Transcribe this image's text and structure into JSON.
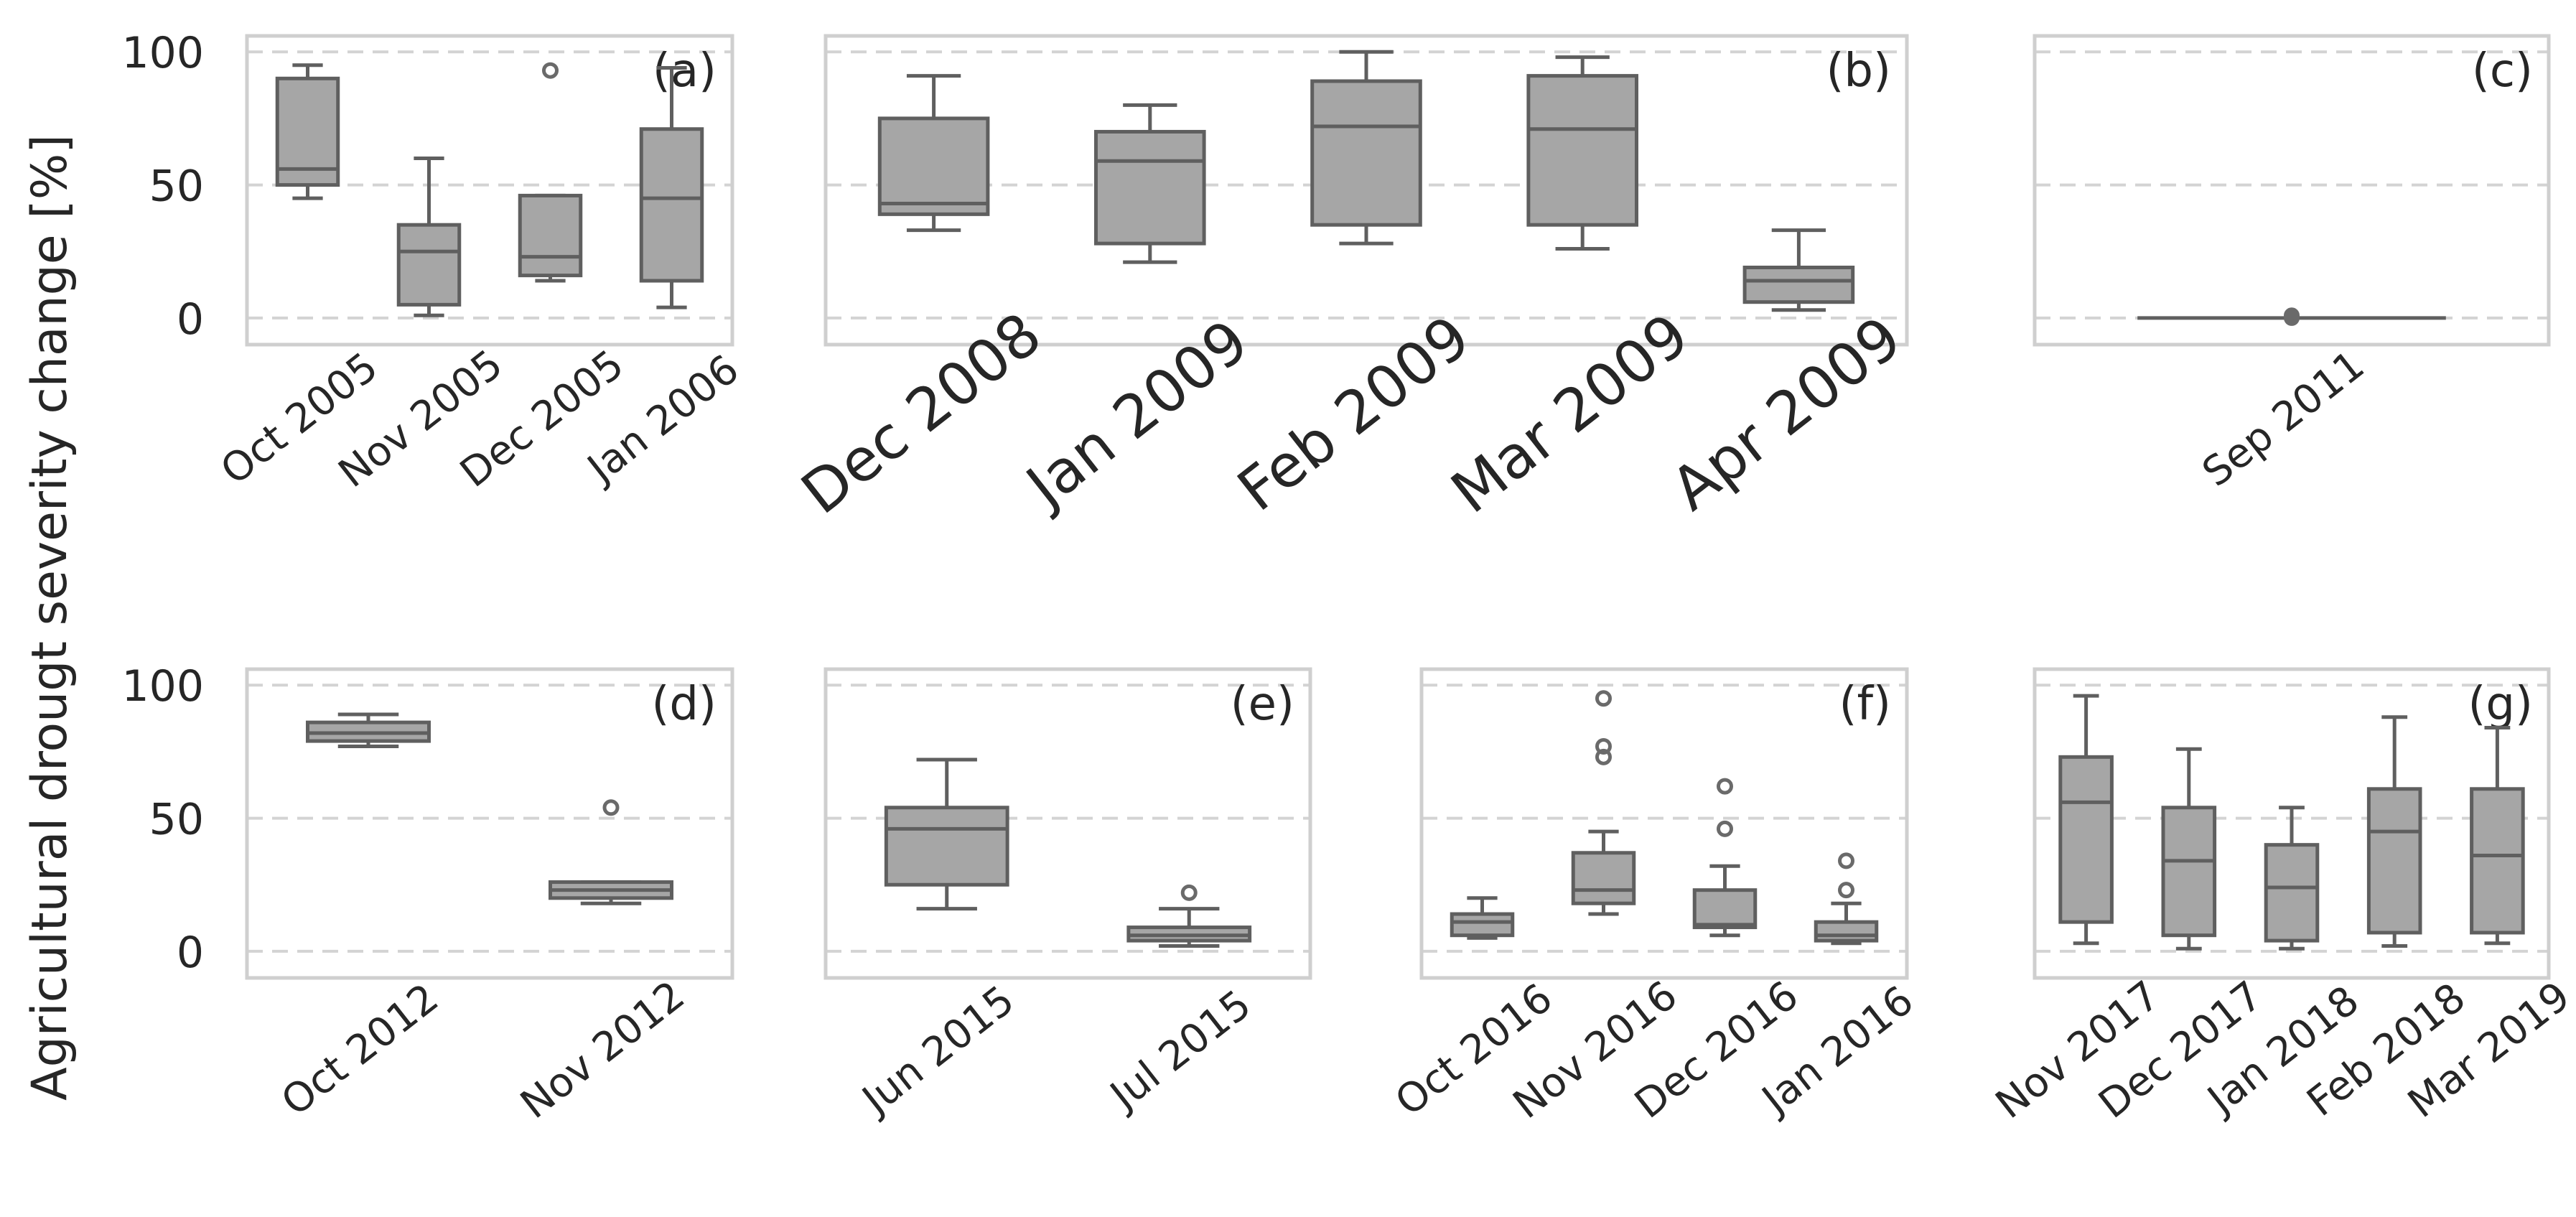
{
  "chart_data": {
    "type": "box",
    "ylabel": "Agricultural drougt severity change [%]",
    "yticks": [
      0,
      50,
      100
    ],
    "ylim": [
      -10,
      106
    ],
    "grid": "dashed horizontal at 0, 50, 100",
    "panels": [
      {
        "label": "(a)",
        "row": "top",
        "categories": [
          "Oct 2005",
          "Nov 2005",
          "Dec 2005",
          "Jan 2006"
        ],
        "boxes": [
          {
            "whislo": 45,
            "q1": 50,
            "med": 56,
            "q3": 90,
            "whishi": 95,
            "fliers": []
          },
          {
            "whislo": 1,
            "q1": 5,
            "med": 25,
            "q3": 35,
            "whishi": 60,
            "fliers": []
          },
          {
            "whislo": 14,
            "q1": 16,
            "med": 23,
            "q3": 46,
            "whishi": 46,
            "fliers": [
              93
            ]
          },
          {
            "whislo": 4,
            "q1": 14,
            "med": 45,
            "q3": 71,
            "whishi": 94,
            "fliers": []
          }
        ]
      },
      {
        "label": "(b)",
        "row": "top",
        "categories": [
          "Dec 2008",
          "Jan 2009",
          "Feb 2009",
          "Mar 2009",
          "Apr 2009"
        ],
        "boxes": [
          {
            "whislo": 33,
            "q1": 39,
            "med": 43,
            "q3": 75,
            "whishi": 91,
            "fliers": []
          },
          {
            "whislo": 21,
            "q1": 28,
            "med": 59,
            "q3": 70,
            "whishi": 80,
            "fliers": []
          },
          {
            "whislo": 28,
            "q1": 35,
            "med": 72,
            "q3": 89,
            "whishi": 100,
            "fliers": []
          },
          {
            "whislo": 26,
            "q1": 35,
            "med": 71,
            "q3": 91,
            "whishi": 98,
            "fliers": []
          },
          {
            "whislo": 3,
            "q1": 6,
            "med": 14,
            "q3": 19,
            "whishi": 33,
            "fliers": []
          }
        ]
      },
      {
        "label": "(c)",
        "row": "top",
        "categories": [
          "Sep 2011"
        ],
        "boxes": [
          {
            "whislo": 0,
            "q1": 0,
            "med": 0,
            "q3": 0,
            "whishi": 0,
            "fliers": [
              0,
              1
            ]
          }
        ]
      },
      {
        "label": "(d)",
        "row": "bottom",
        "categories": [
          "Oct 2012",
          "Nov 2012"
        ],
        "boxes": [
          {
            "whislo": 77,
            "q1": 79,
            "med": 82,
            "q3": 86,
            "whishi": 89,
            "fliers": []
          },
          {
            "whislo": 18,
            "q1": 20,
            "med": 23,
            "q3": 26,
            "whishi": 26,
            "fliers": [
              54
            ]
          }
        ]
      },
      {
        "label": "(e)",
        "row": "bottom",
        "categories": [
          "Jun 2015",
          "Jul 2015"
        ],
        "boxes": [
          {
            "whislo": 16,
            "q1": 25,
            "med": 46,
            "q3": 54,
            "whishi": 72,
            "fliers": []
          },
          {
            "whislo": 2,
            "q1": 4,
            "med": 6,
            "q3": 9,
            "whishi": 16,
            "fliers": [
              22
            ]
          }
        ]
      },
      {
        "label": "(f)",
        "row": "bottom",
        "categories": [
          "Oct 2016",
          "Nov 2016",
          "Dec 2016",
          "Jan 2016"
        ],
        "boxes": [
          {
            "whislo": 5,
            "q1": 6,
            "med": 11,
            "q3": 14,
            "whishi": 20,
            "fliers": []
          },
          {
            "whislo": 14,
            "q1": 18,
            "med": 23,
            "q3": 37,
            "whishi": 45,
            "fliers": [
              73,
              77,
              95
            ]
          },
          {
            "whislo": 6,
            "q1": 9,
            "med": 10,
            "q3": 23,
            "whishi": 32,
            "fliers": [
              46,
              62
            ]
          },
          {
            "whislo": 3,
            "q1": 4,
            "med": 6,
            "q3": 11,
            "whishi": 18,
            "fliers": [
              23,
              34
            ]
          }
        ]
      },
      {
        "label": "(g)",
        "row": "bottom",
        "categories": [
          "Nov 2017",
          "Dec 2017",
          "Jan 2018",
          "Feb 2018",
          "Mar 2019"
        ],
        "boxes": [
          {
            "whislo": 3,
            "q1": 11,
            "med": 56,
            "q3": 73,
            "whishi": 96,
            "fliers": []
          },
          {
            "whislo": 1,
            "q1": 6,
            "med": 34,
            "q3": 54,
            "whishi": 76,
            "fliers": []
          },
          {
            "whislo": 1,
            "q1": 4,
            "med": 24,
            "q3": 40,
            "whishi": 54,
            "fliers": []
          },
          {
            "whislo": 2,
            "q1": 7,
            "med": 45,
            "q3": 61,
            "whishi": 88,
            "fliers": []
          },
          {
            "whislo": 3,
            "q1": 7,
            "med": 36,
            "q3": 61,
            "whishi": 84,
            "fliers": []
          }
        ]
      }
    ]
  }
}
